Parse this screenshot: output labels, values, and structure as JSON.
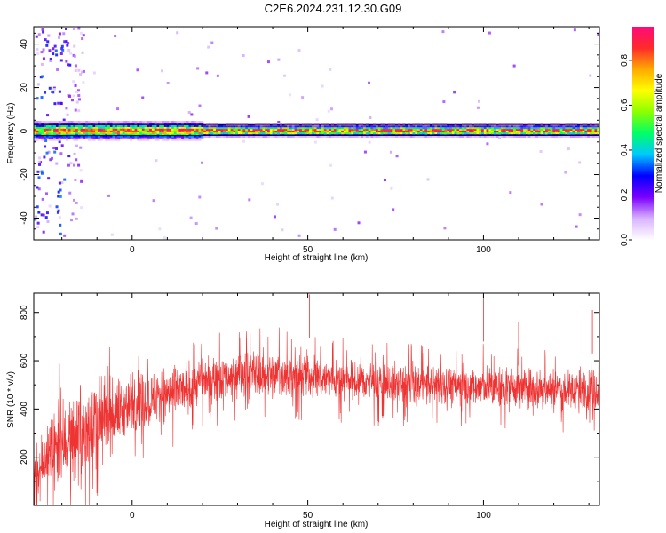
{
  "title": "C2E6.2024.231.12.30.G09",
  "chart_data": [
    {
      "type": "heatmap",
      "xlabel": "Height of straight line (km)",
      "ylabel": "Frequency (Hz)",
      "xlim": [
        -28,
        133
      ],
      "ylim": [
        -50,
        48
      ],
      "xticks": [
        0,
        50,
        100
      ],
      "xtick_labels": [
        "0",
        "50",
        "100"
      ],
      "yticks": [
        -40,
        -20,
        0,
        20,
        40
      ],
      "ytick_labels": [
        "-40",
        "-20",
        "0",
        "20",
        "40"
      ],
      "reference_line_hz": [
        -2,
        3
      ],
      "ridge": {
        "frequency_hz": 0.5,
        "note_x_km": [
          -25,
          130
        ]
      },
      "colorbar": {
        "label": "Normalized spectral amplitude",
        "range": [
          0.0,
          0.95
        ],
        "ticks": [
          0.0,
          0.2,
          0.4,
          0.6,
          0.8
        ],
        "tick_labels": [
          "0.0",
          "0.2",
          "0.4",
          "0.6",
          "0.8"
        ],
        "colors": [
          "#ffffff",
          "#d9b3ff",
          "#7b00ff",
          "#0000ff",
          "#00c8ff",
          "#00ff66",
          "#8cff00",
          "#ffff00",
          "#ffaa00",
          "#ff2a2a",
          "#ff0a7a"
        ]
      }
    },
    {
      "type": "line",
      "xlabel": "Height of straight line (km)",
      "ylabel": "SNR (10 * v/v)",
      "xlim": [
        -28,
        133
      ],
      "ylim": [
        0,
        880
      ],
      "xticks": [
        0,
        50,
        100
      ],
      "xtick_labels": [
        "0",
        "50",
        "100"
      ],
      "yticks": [
        200,
        400,
        600,
        800
      ],
      "ytick_labels": [
        "200",
        "400",
        "600",
        "800"
      ],
      "series": [
        {
          "color": "#ee3333",
          "envelope_x": [
            -28,
            -20,
            -15,
            -10,
            -5,
            0,
            5,
            10,
            15,
            20,
            30,
            40,
            50,
            60,
            70,
            80,
            90,
            100,
            110,
            120,
            133
          ],
          "envelope_mean": [
            150,
            250,
            300,
            330,
            380,
            420,
            440,
            460,
            480,
            520,
            540,
            545,
            540,
            520,
            510,
            500,
            500,
            490,
            490,
            480,
            480
          ],
          "envelope_spread": [
            130,
            200,
            210,
            200,
            160,
            140,
            140,
            130,
            120,
            110,
            110,
            110,
            110,
            100,
            100,
            100,
            100,
            100,
            100,
            100,
            100
          ],
          "peak_values": [
            {
              "x": 50.5,
              "y": 875
            },
            {
              "x": 100,
              "y": 860
            },
            {
              "x": 131,
              "y": 810
            },
            {
              "x": 110,
              "y": 760
            }
          ]
        }
      ]
    }
  ]
}
